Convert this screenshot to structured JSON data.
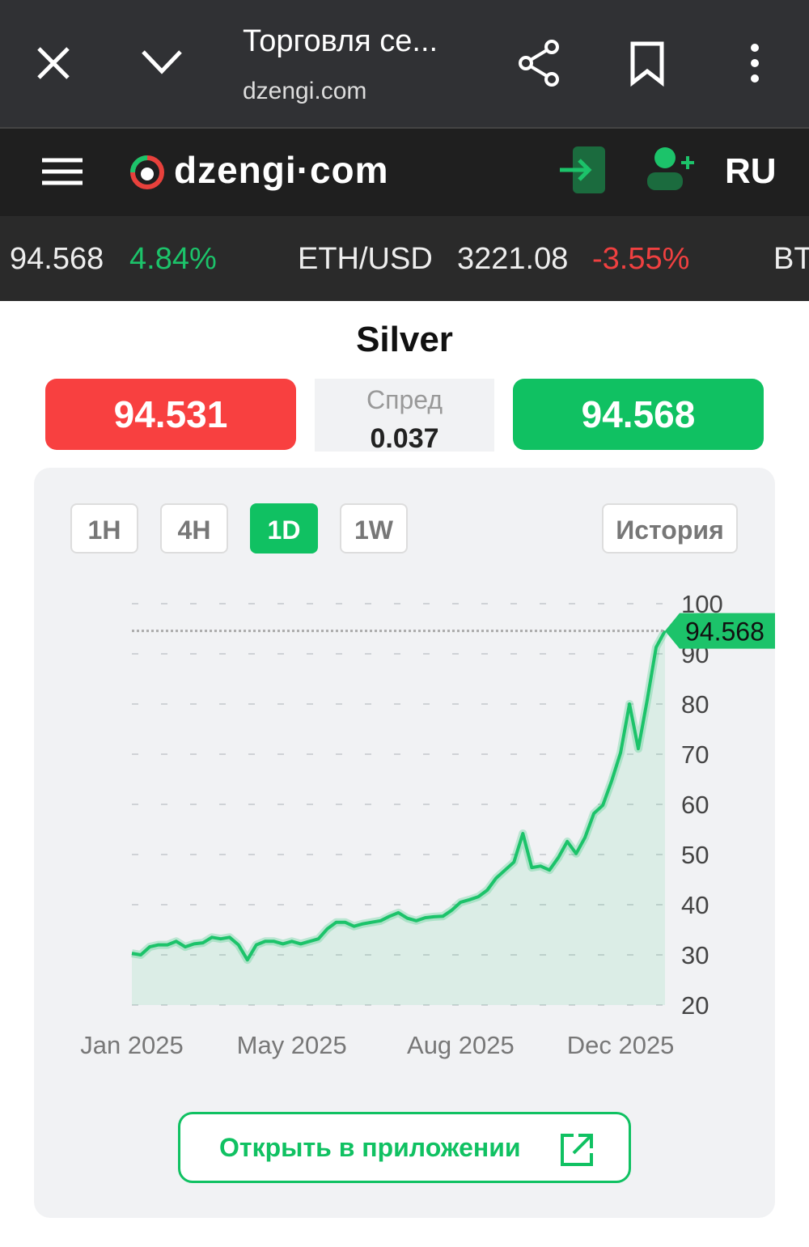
{
  "browser": {
    "title": "Торговля се...",
    "url": "dzengi.com"
  },
  "site": {
    "logo": "dzengi·com",
    "language": "RU"
  },
  "ticker": [
    {
      "price": "94.568",
      "change": "4.84%"
    },
    {
      "symbol": "ETH/USD",
      "price": "3221.08",
      "change": "-3.55%"
    },
    {
      "symbol": "BT"
    }
  ],
  "instrument": {
    "name": "Silver",
    "bid": "94.531",
    "spread_label": "Спред",
    "spread": "0.037",
    "ask": "94.568"
  },
  "timeframes": [
    "1H",
    "4H",
    "1D",
    "1W"
  ],
  "active_timeframe": 2,
  "history_button": "История",
  "open_app_button": "Открыть в приложении",
  "chart_data": {
    "type": "line",
    "color": "#1cc36a",
    "categories": [
      "Jan 2025",
      null,
      null,
      null,
      null,
      null,
      null,
      null,
      null,
      null,
      null,
      null,
      null,
      null,
      null,
      null,
      null,
      null,
      "May 2025",
      null,
      null,
      null,
      null,
      null,
      null,
      null,
      null,
      null,
      null,
      null,
      null,
      null,
      null,
      null,
      null,
      null,
      null,
      "Aug 2025",
      null,
      null,
      null,
      null,
      null,
      null,
      null,
      null,
      null,
      null,
      null,
      null,
      null,
      null,
      null,
      null,
      null,
      "Dec 2025",
      null,
      null,
      null,
      null,
      null
    ],
    "values": [
      30.3,
      30,
      31.6,
      32,
      32,
      32.7,
      31.6,
      32.2,
      32.4,
      33.5,
      33.2,
      33.5,
      32,
      29,
      32,
      32.7,
      32.7,
      32.2,
      32.7,
      32.2,
      32.7,
      33.2,
      35.2,
      36.5,
      36.5,
      35.7,
      36.2,
      36.5,
      36.8,
      37.7,
      38.4,
      37.3,
      36.8,
      37.4,
      37.6,
      37.7,
      38.9,
      40.5,
      41,
      41.6,
      42.9,
      45.3,
      46.9,
      48.5,
      54.2,
      47.4,
      47.7,
      46.9,
      49.4,
      52.6,
      50.2,
      53.4,
      58.2,
      59.8,
      64.7,
      70.3,
      80,
      71.1,
      80.8,
      91.3,
      94.568
    ],
    "current_value": 94.568,
    "ylim": [
      20,
      100
    ],
    "yticks": [
      20,
      30,
      40,
      50,
      60,
      70,
      80,
      90,
      100
    ],
    "grid": true
  }
}
